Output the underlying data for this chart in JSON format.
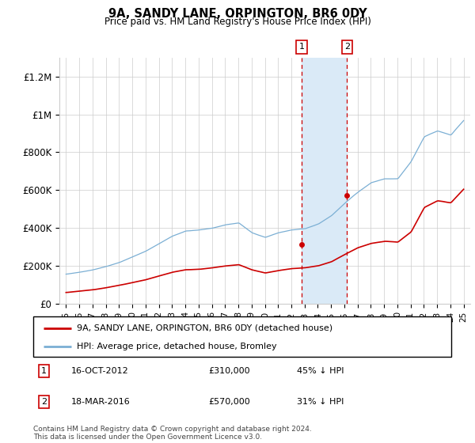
{
  "title": "9A, SANDY LANE, ORPINGTON, BR6 0DY",
  "subtitle": "Price paid vs. HM Land Registry's House Price Index (HPI)",
  "legend_line1": "9A, SANDY LANE, ORPINGTON, BR6 0DY (detached house)",
  "legend_line2": "HPI: Average price, detached house, Bromley",
  "footer": "Contains HM Land Registry data © Crown copyright and database right 2024.\nThis data is licensed under the Open Government Licence v3.0.",
  "sale1_date": "16-OCT-2012",
  "sale1_price": "£310,000",
  "sale1_hpi": "45% ↓ HPI",
  "sale1_year": 2012.79,
  "sale1_value": 310000,
  "sale2_date": "18-MAR-2016",
  "sale2_price": "£570,000",
  "sale2_hpi": "31% ↓ HPI",
  "sale2_year": 2016.21,
  "sale2_value": 570000,
  "price_color": "#cc0000",
  "hpi_color": "#7bafd4",
  "shade_color": "#daeaf7",
  "ylim": [
    0,
    1300000
  ],
  "yticks": [
    0,
    200000,
    400000,
    600000,
    800000,
    1000000,
    1200000
  ],
  "ytick_labels": [
    "£0",
    "£200K",
    "£400K",
    "£600K",
    "£800K",
    "£1M",
    "£1.2M"
  ],
  "xlim": [
    1994.5,
    2025.5
  ],
  "background_color": "#ffffff",
  "grid_color": "#cccccc"
}
